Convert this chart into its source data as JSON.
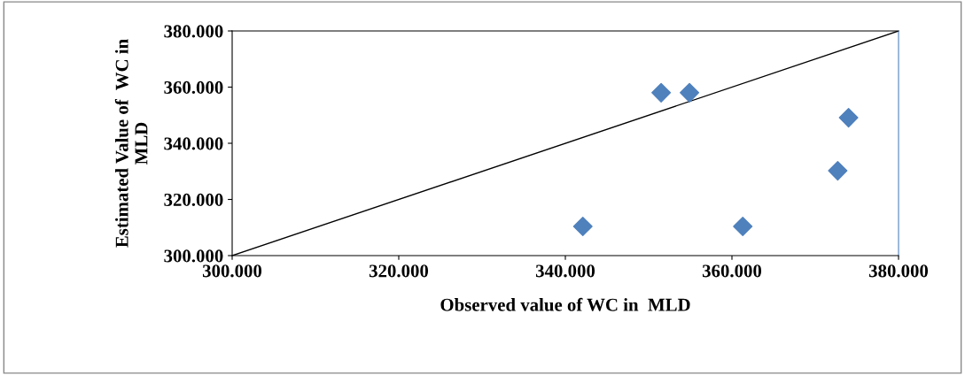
{
  "chart_data": {
    "type": "scatter",
    "xlabel": "Observed value of WC in  MLD",
    "ylabel": "Estimated Value of  WC in\nMLD",
    "xlim": [
      300,
      380
    ],
    "ylim": [
      300,
      380
    ],
    "xticks": [
      {
        "value": 300,
        "label": "300.000"
      },
      {
        "value": 320,
        "label": "320.000"
      },
      {
        "value": 340,
        "label": "340.000"
      },
      {
        "value": 360,
        "label": "360.000"
      },
      {
        "value": 380,
        "label": "380.000"
      }
    ],
    "yticks": [
      {
        "value": 300,
        "label": "300.000"
      },
      {
        "value": 320,
        "label": "320.000"
      },
      {
        "value": 340,
        "label": "340.000"
      },
      {
        "value": 360,
        "label": "360.000"
      },
      {
        "value": 380,
        "label": "380.000"
      }
    ],
    "grid": false,
    "legend": false,
    "marker": "diamond",
    "series": [
      {
        "color": "#4f81bd",
        "x": [
          342.1,
          351.5,
          354.9,
          361.3,
          372.7,
          374.0
        ],
        "values": [
          310.4,
          358.0,
          358.0,
          310.4,
          330.2,
          349.1
        ]
      },
      {
        "type": "line",
        "color": "#000000",
        "x": [
          300,
          380
        ],
        "values": [
          300,
          380
        ],
        "marker": "none"
      }
    ]
  }
}
